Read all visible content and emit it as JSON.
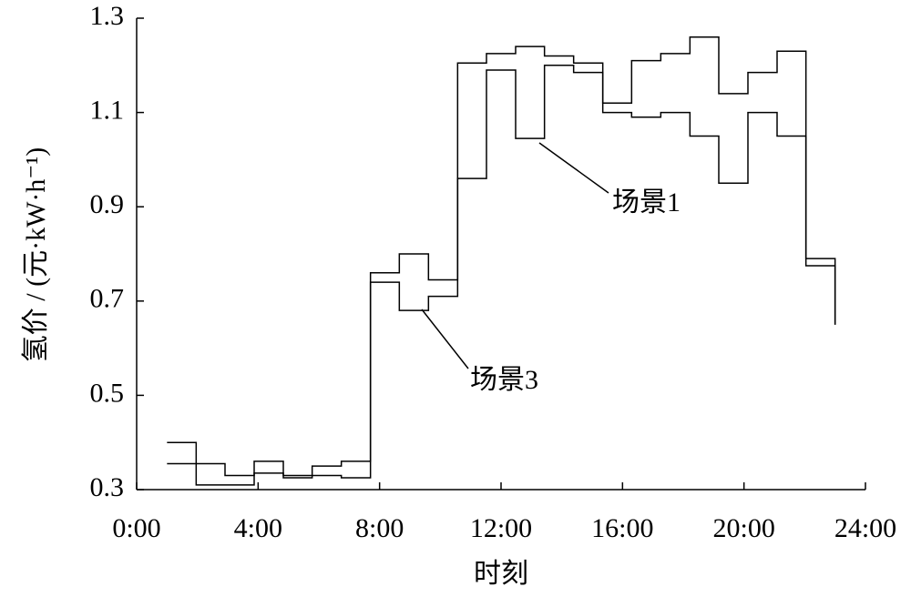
{
  "chart_data": {
    "type": "step",
    "xlabel": "时刻",
    "ylabel": "氢价 / (元·kW·h⁻¹)",
    "x": [
      1,
      1.96,
      2.91,
      3.87,
      4.83,
      5.78,
      6.74,
      7.7,
      8.65,
      9.61,
      10.57,
      11.52,
      12.48,
      13.43,
      14.39,
      15.35,
      16.3,
      17.26,
      18.22,
      19.17,
      20.13,
      21.09,
      22.04,
      23
    ],
    "series": [
      {
        "color": "#000000",
        "values": [
          0.4,
          0.31,
          0.31,
          0.36,
          0.325,
          0.35,
          0.36,
          0.76,
          0.8,
          0.745,
          1.205,
          1.225,
          1.24,
          1.22,
          1.205,
          1.12,
          1.21,
          1.225,
          1.26,
          1.14,
          1.185,
          1.23,
          0.79,
          0.65
        ]
      },
      {
        "color": "#000000",
        "values": [
          0.355,
          0.355,
          0.33,
          0.335,
          0.33,
          0.33,
          0.325,
          0.74,
          0.68,
          0.71,
          0.96,
          1.19,
          1.045,
          1.2,
          1.185,
          1.1,
          1.09,
          1.1,
          1.05,
          0.95,
          1.1,
          1.05,
          0.775,
          0.65
        ]
      }
    ],
    "annotations": [
      "场景1",
      "场景3"
    ],
    "xlim": [
      0,
      24
    ],
    "xticks": [
      {
        "value": 0,
        "label": "0:00"
      },
      {
        "value": 4,
        "label": "4:00"
      },
      {
        "value": 8,
        "label": "8:00"
      },
      {
        "value": 12,
        "label": "12:00"
      },
      {
        "value": 16,
        "label": "16:00"
      },
      {
        "value": 20,
        "label": "20:00"
      },
      {
        "value": 24,
        "label": "24:00"
      }
    ],
    "ylim": [
      0.3,
      1.3
    ],
    "yticks": [
      0.3,
      0.5,
      0.7,
      0.9,
      1.1,
      1.3
    ],
    "grid": false
  }
}
